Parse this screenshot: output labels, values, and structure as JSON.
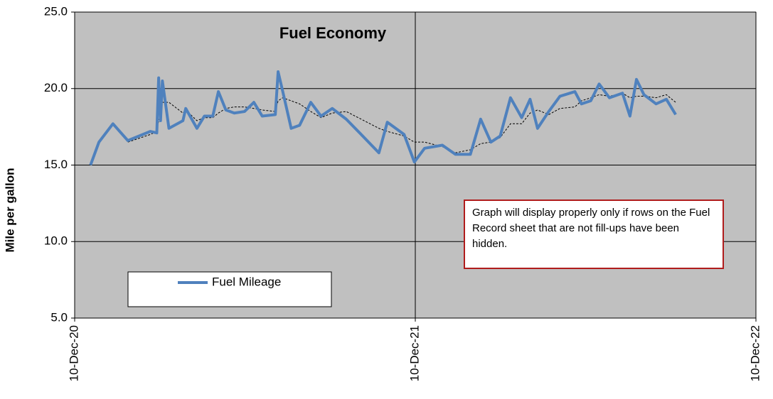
{
  "chart_data": {
    "type": "line",
    "title": "Fuel Economy",
    "y_label": "Mile per gallon",
    "annotation": "Graph will display properly only if rows on the Fuel Record sheet that are not fill-ups have been hidden.",
    "x": [
      "2020-12-27",
      "2021-01-05",
      "2021-01-20",
      "2021-02-05",
      "2021-03-01",
      "2021-03-08",
      "2021-03-10",
      "2021-03-12",
      "2021-03-14",
      "2021-03-21",
      "2021-04-05",
      "2021-04-08",
      "2021-04-20",
      "2021-04-28",
      "2021-05-07",
      "2021-05-13",
      "2021-05-21",
      "2021-05-30",
      "2021-06-10",
      "2021-06-20",
      "2021-06-29",
      "2021-07-13",
      "2021-07-16",
      "2021-07-21",
      "2021-07-30",
      "2021-08-08",
      "2021-08-20",
      "2021-08-31",
      "2021-09-12",
      "2021-09-27",
      "2021-10-13",
      "2021-11-01",
      "2021-11-10",
      "2021-11-28",
      "2021-12-09",
      "2021-12-20",
      "2022-01-08",
      "2022-01-22",
      "2022-02-07",
      "2022-02-18",
      "2022-03-01",
      "2022-03-11",
      "2022-03-22",
      "2022-04-03",
      "2022-04-12",
      "2022-04-20",
      "2022-05-02",
      "2022-05-14",
      "2022-05-30",
      "2022-06-06",
      "2022-06-16",
      "2022-06-25",
      "2022-07-06",
      "2022-07-20",
      "2022-07-28",
      "2022-08-04",
      "2022-08-12",
      "2022-08-25",
      "2022-09-05",
      "2022-09-15"
    ],
    "series": [
      {
        "name": "Fuel Mileage",
        "color": "#4f81bd",
        "values": [
          15.0,
          16.5,
          17.7,
          16.6,
          17.2,
          17.1,
          20.7,
          17.9,
          20.5,
          17.4,
          17.9,
          18.7,
          17.4,
          18.2,
          18.2,
          19.8,
          18.6,
          18.4,
          18.5,
          19.1,
          18.2,
          18.3,
          21.1,
          19.8,
          17.4,
          17.6,
          19.1,
          18.2,
          18.7,
          18.0,
          17.0,
          15.8,
          17.8,
          17.0,
          15.2,
          16.1,
          16.3,
          15.7,
          15.7,
          18.0,
          16.5,
          16.9,
          19.4,
          18.1,
          19.3,
          17.4,
          18.5,
          19.5,
          19.8,
          19.0,
          19.2,
          20.3,
          19.4,
          19.7,
          18.2,
          20.6,
          19.6,
          19.0,
          19.3,
          18.3
        ]
      }
    ],
    "trendline": {
      "color": "#000000",
      "dashed": true,
      "values": [
        null,
        null,
        null,
        16.5,
        17.0,
        17.2,
        17.9,
        18.2,
        19.1,
        19.1,
        18.4,
        18.6,
        17.9,
        18.1,
        18.1,
        18.4,
        18.7,
        18.8,
        18.8,
        18.7,
        18.6,
        18.5,
        19.2,
        19.4,
        19.2,
        19.0,
        18.5,
        18.1,
        18.4,
        18.5,
        18.0,
        17.4,
        17.2,
        16.9,
        16.5,
        16.5,
        16.2,
        15.8,
        16.0,
        16.4,
        16.5,
        16.8,
        17.7,
        17.7,
        18.4,
        18.6,
        18.3,
        18.7,
        18.8,
        19.2,
        19.4,
        19.6,
        19.5,
        19.7,
        19.4,
        19.5,
        19.5,
        19.4,
        19.6,
        19.1
      ]
    },
    "xlim": [
      "2020-12-10",
      "2022-12-10"
    ],
    "xticks": [
      {
        "value": "2020-12-10",
        "label": "10-Dec-20"
      },
      {
        "value": "2021-12-10",
        "label": "10-Dec-21"
      },
      {
        "value": "2022-12-10",
        "label": "10-Dec-22"
      }
    ],
    "ylim": [
      5,
      25
    ],
    "yticks": [
      {
        "value": 5,
        "label": "5.0"
      },
      {
        "value": 10,
        "label": "10.0"
      },
      {
        "value": 15,
        "label": "15.0"
      },
      {
        "value": 20,
        "label": "20.0"
      },
      {
        "value": 25,
        "label": "25.0"
      }
    ],
    "grid": true,
    "plot_background": "#c0c0c0",
    "legend": "bottom-left"
  }
}
